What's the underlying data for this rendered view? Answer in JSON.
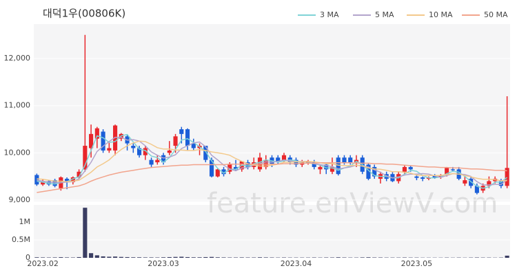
{
  "chart_data": {
    "type": "candlestick",
    "title": "대덕1우(00806K)",
    "watermark": "feature.enViewV.com",
    "categories": [
      null,
      "2023.02",
      null,
      null,
      null,
      null,
      null,
      null,
      null,
      null,
      null,
      null,
      null,
      null,
      null,
      null,
      null,
      null,
      null,
      null,
      null,
      "2023.03",
      null,
      null,
      null,
      null,
      null,
      null,
      null,
      null,
      null,
      null,
      null,
      null,
      null,
      null,
      null,
      null,
      null,
      null,
      null,
      null,
      null,
      "2023.04",
      null,
      null,
      null,
      null,
      null,
      null,
      null,
      null,
      null,
      null,
      null,
      null,
      null,
      null,
      null,
      null,
      null,
      null,
      null,
      "2023.05",
      null,
      null,
      null,
      null,
      null,
      null,
      null,
      null,
      null,
      null,
      null,
      null,
      null,
      null,
      null
    ],
    "open": [
      9530,
      9330,
      9400,
      9420,
      9250,
      9450,
      9380,
      9480,
      9650,
      10100,
      10300,
      10450,
      10050,
      10050,
      10300,
      10350,
      10150,
      10100,
      9950,
      9850,
      9800,
      9950,
      10000,
      10150,
      10500,
      10500,
      10200,
      10100,
      10150,
      9850,
      9500,
      9650,
      9600,
      9700,
      9650,
      9800,
      9700,
      9650,
      9700,
      9900,
      9900,
      9850,
      9900,
      9850,
      9750,
      9780,
      9800,
      9650,
      9750,
      9600,
      9900,
      9900,
      9900,
      9800,
      9900,
      9750,
      9700,
      9450,
      9550,
      9550,
      9400,
      9600,
      9700,
      9500,
      9480,
      9450,
      9520,
      9480,
      9550,
      9650,
      9650,
      9350,
      9450,
      9300,
      9200,
      9300,
      9400,
      9400,
      9300
    ],
    "high": [
      9560,
      9450,
      9420,
      9450,
      9500,
      9480,
      9500,
      9650,
      12500,
      10600,
      10550,
      10500,
      10250,
      10600,
      10420,
      10380,
      10200,
      10150,
      10150,
      9900,
      9950,
      10000,
      10250,
      10400,
      10550,
      10520,
      10300,
      10200,
      10150,
      9900,
      9680,
      9700,
      9800,
      9850,
      9830,
      9850,
      9900,
      10000,
      9950,
      9950,
      9950,
      10000,
      9950,
      9900,
      9850,
      9850,
      9850,
      9750,
      9800,
      9900,
      9950,
      9950,
      9950,
      9950,
      9950,
      9780,
      9750,
      9600,
      9600,
      9600,
      9600,
      9750,
      9720,
      9550,
      9500,
      9500,
      9550,
      9550,
      9700,
      9700,
      9700,
      9500,
      9500,
      9350,
      9350,
      9500,
      9500,
      9450,
      11200
    ],
    "low": [
      9300,
      9300,
      9300,
      9270,
      9200,
      9230,
      9330,
      9450,
      9600,
      9900,
      10100,
      10000,
      10000,
      9950,
      10250,
      10050,
      10000,
      9900,
      9850,
      9700,
      9750,
      9750,
      9950,
      10000,
      10200,
      10050,
      10050,
      9950,
      9800,
      9480,
      9480,
      9500,
      9550,
      9620,
      9600,
      9650,
      9650,
      9600,
      9650,
      9700,
      9750,
      9800,
      9750,
      9700,
      9700,
      9750,
      9650,
      9550,
      9550,
      9550,
      9520,
      9750,
      9750,
      9700,
      9550,
      9420,
      9450,
      9350,
      9400,
      9380,
      9350,
      9550,
      9600,
      9420,
      9400,
      9420,
      9450,
      9450,
      9500,
      9600,
      9420,
      9300,
      9250,
      9120,
      9150,
      9250,
      9350,
      9250,
      9250
    ],
    "close": [
      9330,
      9400,
      9330,
      9300,
      9480,
      9380,
      9480,
      9600,
      10150,
      10400,
      10520,
      10050,
      10100,
      10580,
      10400,
      10200,
      10100,
      9950,
      10100,
      9750,
      9850,
      9800,
      10050,
      10350,
      10400,
      10150,
      10100,
      10150,
      9850,
      9500,
      9650,
      9550,
      9750,
      9650,
      9820,
      9700,
      9800,
      9900,
      9850,
      9750,
      9800,
      9950,
      9800,
      9750,
      9800,
      9820,
      9700,
      9700,
      9650,
      9700,
      9550,
      9800,
      9800,
      9850,
      9600,
      9450,
      9500,
      9550,
      9450,
      9400,
      9550,
      9700,
      9650,
      9470,
      9450,
      9480,
      9480,
      9520,
      9680,
      9630,
      9450,
      9420,
      9300,
      9150,
      9300,
      9400,
      9450,
      9300,
      9680
    ],
    "volume": [
      15000,
      12000,
      10000,
      12000,
      18000,
      12000,
      10000,
      20000,
      1400000,
      130000,
      70000,
      40000,
      30000,
      35000,
      25000,
      20000,
      15000,
      15000,
      12000,
      12000,
      10000,
      15000,
      20000,
      25000,
      30000,
      20000,
      15000,
      15000,
      20000,
      25000,
      15000,
      12000,
      10000,
      10000,
      12000,
      10000,
      10000,
      15000,
      12000,
      10000,
      8000,
      10000,
      8000,
      8000,
      8000,
      8000,
      10000,
      8000,
      10000,
      10000,
      15000,
      10000,
      8000,
      8000,
      12000,
      15000,
      10000,
      10000,
      8000,
      8000,
      8000,
      10000,
      8000,
      8000,
      6000,
      6000,
      6000,
      6000,
      8000,
      6000,
      8000,
      6000,
      8000,
      10000,
      8000,
      8000,
      6000,
      8000,
      60000
    ],
    "up_color": "#e8262b",
    "down_color": "#1b5fd8",
    "volume_color": "#3a3d62",
    "series": [
      {
        "name": "3 MA",
        "color": "#7fd3d6",
        "values": [
          9400,
          9380,
          9350,
          9340,
          9370,
          9390,
          9450,
          9490,
          9740,
          10050,
          10360,
          10320,
          10220,
          10240,
          10360,
          10390,
          10230,
          10080,
          10050,
          9930,
          9900,
          9800,
          9900,
          10070,
          10270,
          10300,
          10220,
          10130,
          10030,
          9830,
          9670,
          9570,
          9650,
          9650,
          9740,
          9720,
          9770,
          9800,
          9850,
          9830,
          9800,
          9830,
          9850,
          9830,
          9780,
          9790,
          9770,
          9740,
          9680,
          9680,
          9630,
          9680,
          9720,
          9820,
          9750,
          9630,
          9520,
          9500,
          9500,
          9470,
          9470,
          9550,
          9630,
          9610,
          9520,
          9470,
          9470,
          9490,
          9560,
          9610,
          9590,
          9500,
          9390,
          9290,
          9250,
          9280,
          9380,
          9380,
          9480
        ]
      },
      {
        "name": "5 MA",
        "color": "#b2a4cc",
        "values": [
          9420,
          9400,
          9380,
          9370,
          9370,
          9380,
          9390,
          9450,
          9620,
          9800,
          10030,
          10140,
          10240,
          10330,
          10330,
          10270,
          10280,
          10250,
          10150,
          10020,
          9950,
          9890,
          9910,
          9960,
          10090,
          10150,
          10210,
          10230,
          10130,
          9950,
          9850,
          9740,
          9660,
          9620,
          9680,
          9690,
          9740,
          9770,
          9810,
          9800,
          9820,
          9850,
          9830,
          9810,
          9820,
          9820,
          9770,
          9750,
          9730,
          9710,
          9660,
          9680,
          9700,
          9740,
          9720,
          9700,
          9640,
          9590,
          9510,
          9470,
          9490,
          9530,
          9550,
          9550,
          9560,
          9550,
          9510,
          9480,
          9520,
          9560,
          9550,
          9540,
          9500,
          9390,
          9320,
          9320,
          9330,
          9330,
          9430
        ]
      },
      {
        "name": "10 MA",
        "color": "#f3c98b",
        "values": [
          9450,
          9440,
          9420,
          9400,
          9400,
          9390,
          9400,
          9420,
          9500,
          9590,
          9700,
          9770,
          9850,
          9970,
          10070,
          10150,
          10210,
          10250,
          10240,
          10180,
          10110,
          10080,
          10080,
          10060,
          10060,
          10050,
          10050,
          10070,
          10050,
          10020,
          10000,
          9980,
          9950,
          9880,
          9820,
          9770,
          9740,
          9720,
          9720,
          9740,
          9760,
          9800,
          9800,
          9810,
          9810,
          9820,
          9810,
          9790,
          9770,
          9770,
          9740,
          9730,
          9730,
          9740,
          9720,
          9680,
          9660,
          9650,
          9630,
          9600,
          9600,
          9590,
          9570,
          9530,
          9520,
          9520,
          9520,
          9520,
          9540,
          9560,
          9550,
          9520,
          9490,
          9460,
          9440,
          9440,
          9430,
          9410,
          9410
        ]
      },
      {
        "name": "50 MA",
        "color": "#f2a48c",
        "values": [
          9160,
          9180,
          9200,
          9220,
          9240,
          9260,
          9280,
          9300,
          9340,
          9400,
          9450,
          9490,
          9530,
          9560,
          9590,
          9610,
          9630,
          9650,
          9670,
          9690,
          9700,
          9710,
          9720,
          9730,
          9740,
          9740,
          9750,
          9750,
          9750,
          9750,
          9750,
          9750,
          9760,
          9760,
          9760,
          9760,
          9760,
          9760,
          9760,
          9760,
          9760,
          9770,
          9770,
          9770,
          9780,
          9780,
          9780,
          9790,
          9790,
          9790,
          9790,
          9790,
          9790,
          9780,
          9780,
          9780,
          9770,
          9770,
          9760,
          9760,
          9750,
          9740,
          9730,
          9720,
          9710,
          9700,
          9700,
          9690,
          9690,
          9680,
          9680,
          9670,
          9660,
          9660,
          9650,
          9640,
          9630,
          9630,
          9620
        ]
      }
    ],
    "ylim": [
      8970,
      12730
    ],
    "yticks": [
      {
        "value": 9000,
        "label": "9,000"
      },
      {
        "value": 10000,
        "label": "10,000"
      },
      {
        "value": 11000,
        "label": "11,000"
      },
      {
        "value": 12000,
        "label": "12,000"
      }
    ],
    "volume_ylim": [
      0,
      1480000
    ],
    "volume_yticks": [
      0,
      {
        "value": 500000,
        "label": "0.5M"
      },
      {
        "value": 1000000,
        "label": "1M"
      }
    ],
    "grid": true,
    "legend": "top-right"
  }
}
